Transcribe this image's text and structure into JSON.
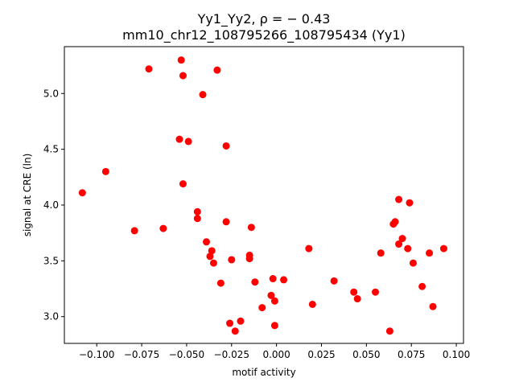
{
  "chart_data": {
    "type": "scatter",
    "title": "Yy1_Yy2, ρ = − 0.43",
    "subtitle": "mm10_chr12_108795266_108795434 (Yy1)",
    "xlabel": "motif activity",
    "ylabel": "signal at CRE (ln)",
    "xlim": [
      -0.118,
      0.104
    ],
    "ylim": [
      2.76,
      5.42
    ],
    "xticks": [
      -0.1,
      -0.075,
      -0.05,
      -0.025,
      0.0,
      0.025,
      0.05,
      0.075,
      0.1
    ],
    "xtick_labels": [
      "−0.100",
      "−0.075",
      "−0.050",
      "−0.025",
      "0.000",
      "0.025",
      "0.050",
      "0.075",
      "0.100"
    ],
    "yticks": [
      3.0,
      3.5,
      4.0,
      4.5,
      5.0
    ],
    "ytick_labels": [
      "3.0",
      "3.5",
      "4.0",
      "4.5",
      "5.0"
    ],
    "grid": false,
    "marker_color": "#ff0000",
    "points": [
      {
        "x": -0.108,
        "y": 4.11
      },
      {
        "x": -0.095,
        "y": 4.3
      },
      {
        "x": -0.079,
        "y": 3.77
      },
      {
        "x": -0.071,
        "y": 5.22
      },
      {
        "x": -0.063,
        "y": 3.79
      },
      {
        "x": -0.054,
        "y": 4.59
      },
      {
        "x": -0.053,
        "y": 5.3
      },
      {
        "x": -0.052,
        "y": 5.16
      },
      {
        "x": -0.052,
        "y": 4.19
      },
      {
        "x": -0.049,
        "y": 4.57
      },
      {
        "x": -0.044,
        "y": 3.94
      },
      {
        "x": -0.044,
        "y": 3.88
      },
      {
        "x": -0.041,
        "y": 4.99
      },
      {
        "x": -0.039,
        "y": 3.67
      },
      {
        "x": -0.037,
        "y": 3.54
      },
      {
        "x": -0.036,
        "y": 3.59
      },
      {
        "x": -0.035,
        "y": 3.48
      },
      {
        "x": -0.033,
        "y": 5.21
      },
      {
        "x": -0.031,
        "y": 3.3
      },
      {
        "x": -0.028,
        "y": 4.53
      },
      {
        "x": -0.028,
        "y": 3.85
      },
      {
        "x": -0.026,
        "y": 2.94
      },
      {
        "x": -0.025,
        "y": 3.51
      },
      {
        "x": -0.023,
        "y": 2.87
      },
      {
        "x": -0.02,
        "y": 2.96
      },
      {
        "x": -0.015,
        "y": 3.55
      },
      {
        "x": -0.015,
        "y": 3.52
      },
      {
        "x": -0.014,
        "y": 3.8
      },
      {
        "x": -0.012,
        "y": 3.31
      },
      {
        "x": -0.008,
        "y": 3.08
      },
      {
        "x": -0.003,
        "y": 3.19
      },
      {
        "x": -0.002,
        "y": 3.34
      },
      {
        "x": -0.001,
        "y": 2.92
      },
      {
        "x": -0.001,
        "y": 3.14
      },
      {
        "x": 0.004,
        "y": 3.33
      },
      {
        "x": 0.018,
        "y": 3.61
      },
      {
        "x": 0.02,
        "y": 3.11
      },
      {
        "x": 0.032,
        "y": 3.32
      },
      {
        "x": 0.043,
        "y": 3.22
      },
      {
        "x": 0.045,
        "y": 3.16
      },
      {
        "x": 0.055,
        "y": 3.22
      },
      {
        "x": 0.058,
        "y": 3.57
      },
      {
        "x": 0.063,
        "y": 2.87
      },
      {
        "x": 0.065,
        "y": 3.83
      },
      {
        "x": 0.066,
        "y": 3.85
      },
      {
        "x": 0.068,
        "y": 3.65
      },
      {
        "x": 0.068,
        "y": 4.05
      },
      {
        "x": 0.07,
        "y": 3.7
      },
      {
        "x": 0.073,
        "y": 3.61
      },
      {
        "x": 0.074,
        "y": 4.02
      },
      {
        "x": 0.076,
        "y": 3.48
      },
      {
        "x": 0.081,
        "y": 3.27
      },
      {
        "x": 0.085,
        "y": 3.57
      },
      {
        "x": 0.087,
        "y": 3.09
      },
      {
        "x": 0.093,
        "y": 3.61
      }
    ]
  }
}
